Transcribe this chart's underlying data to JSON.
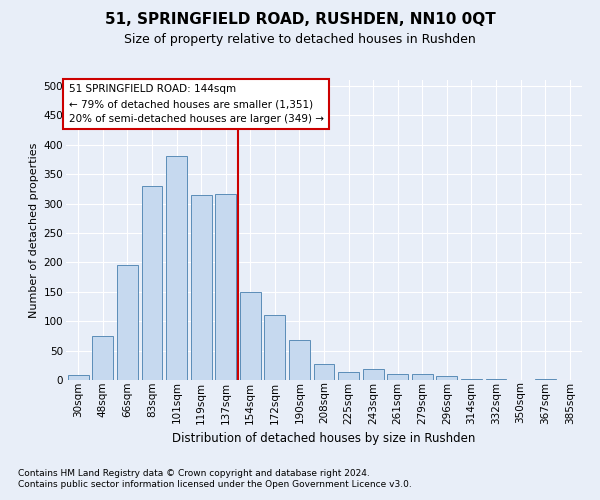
{
  "title": "51, SPRINGFIELD ROAD, RUSHDEN, NN10 0QT",
  "subtitle": "Size of property relative to detached houses in Rushden",
  "xlabel": "Distribution of detached houses by size in Rushden",
  "ylabel": "Number of detached properties",
  "bar_color": "#c6d9ef",
  "bar_edge_color": "#5b8db8",
  "categories": [
    "30sqm",
    "48sqm",
    "66sqm",
    "83sqm",
    "101sqm",
    "119sqm",
    "137sqm",
    "154sqm",
    "172sqm",
    "190sqm",
    "208sqm",
    "225sqm",
    "243sqm",
    "261sqm",
    "279sqm",
    "296sqm",
    "314sqm",
    "332sqm",
    "350sqm",
    "367sqm",
    "385sqm"
  ],
  "values": [
    8,
    75,
    195,
    330,
    380,
    315,
    317,
    150,
    110,
    68,
    27,
    13,
    18,
    10,
    11,
    6,
    2,
    1,
    0,
    1,
    0
  ],
  "ylim": [
    0,
    510
  ],
  "yticks": [
    0,
    50,
    100,
    150,
    200,
    250,
    300,
    350,
    400,
    450,
    500
  ],
  "vline_pos": 6.5,
  "annotation_title": "51 SPRINGFIELD ROAD: 144sqm",
  "annotation_line1": "← 79% of detached houses are smaller (1,351)",
  "annotation_line2": "20% of semi-detached houses are larger (349) →",
  "footnote1": "Contains HM Land Registry data © Crown copyright and database right 2024.",
  "footnote2": "Contains public sector information licensed under the Open Government Licence v3.0.",
  "bg_color": "#e8eef8",
  "grid_color": "#ffffff",
  "annotation_box_edge_color": "#cc0000",
  "vline_color": "#cc0000",
  "title_fontsize": 11,
  "subtitle_fontsize": 9,
  "ylabel_fontsize": 8,
  "xlabel_fontsize": 8.5,
  "tick_fontsize": 7.5,
  "footnote_fontsize": 6.5
}
